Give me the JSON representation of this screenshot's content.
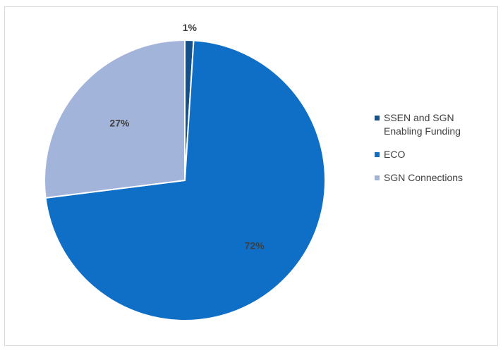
{
  "chart_data": {
    "type": "pie",
    "title": "",
    "slices": [
      {
        "name": "SSEN and SGN Enabling Funding",
        "value": 1,
        "label": "1%",
        "color": "#14508c"
      },
      {
        "name": "ECO",
        "value": 72,
        "label": "72%",
        "color": "#0f6fc6"
      },
      {
        "name": "SGN Connections",
        "value": 27,
        "label": "27%",
        "color": "#a3b4db"
      }
    ],
    "legend_placement": "right"
  }
}
